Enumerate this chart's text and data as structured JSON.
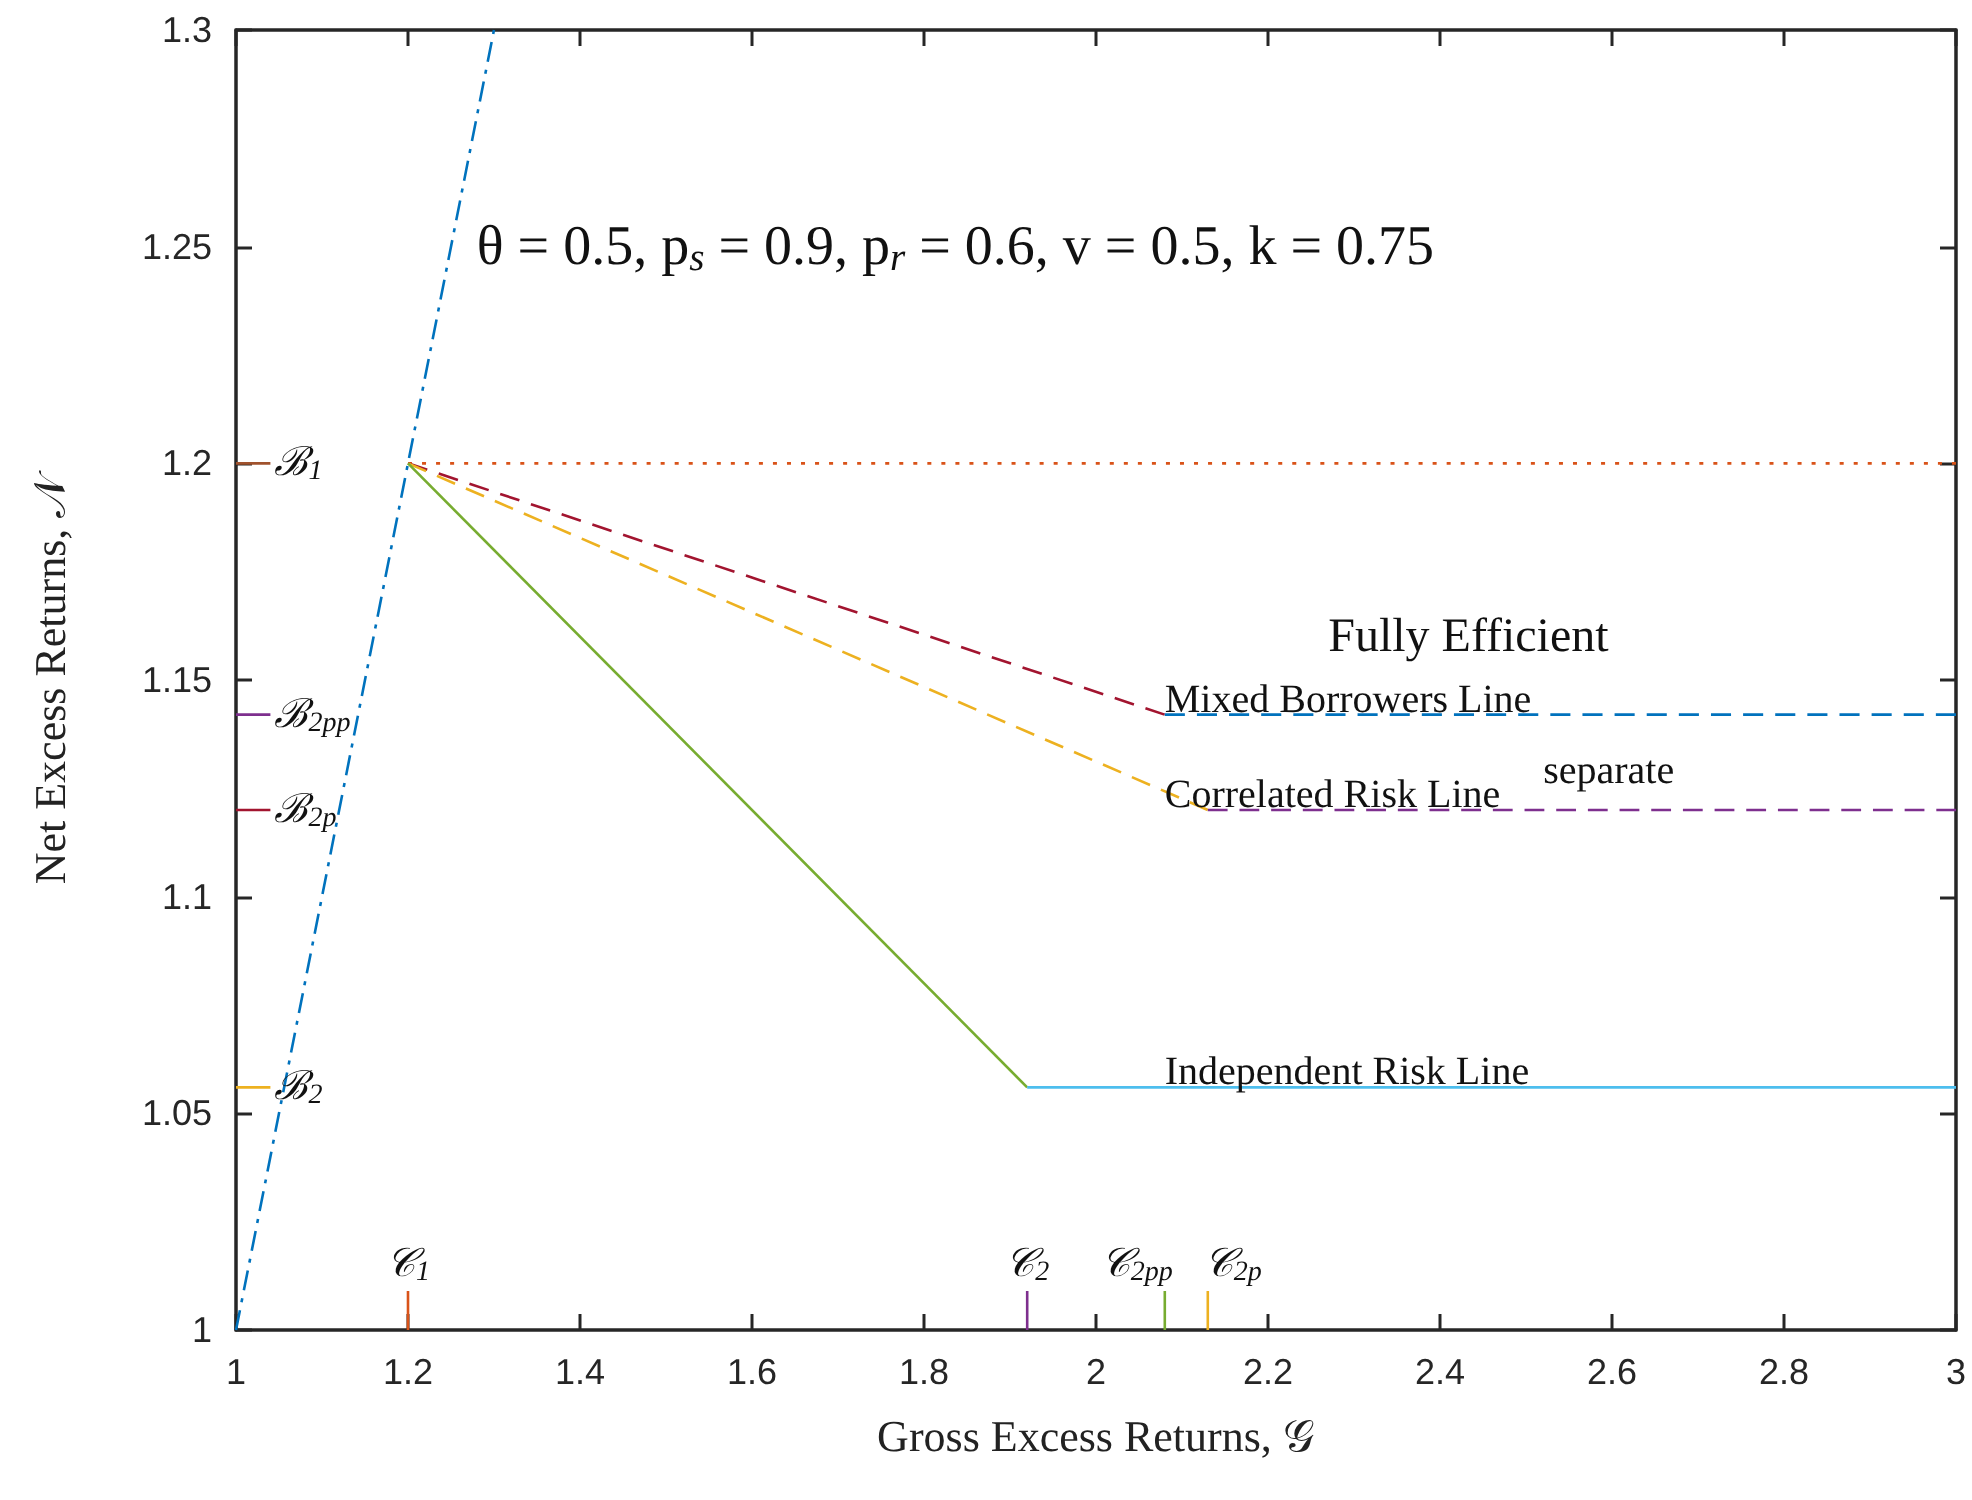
{
  "chart_data": {
    "type": "line",
    "xlabel": "Gross Excess Returns, 𝒢",
    "ylabel": "Net Excess Returns, 𝒩",
    "xlim": [
      1,
      3
    ],
    "xticks": [
      1,
      1.2,
      1.4,
      1.6,
      1.8,
      2,
      2.2,
      2.4,
      2.6,
      2.8,
      3
    ],
    "ylim": [
      1,
      1.3
    ],
    "yticks": [
      1,
      1.05,
      1.1,
      1.15,
      1.2,
      1.25,
      1.3
    ],
    "grid": false,
    "legend": false,
    "series": [
      {
        "color": "#0072bd",
        "line_style": "dashdot",
        "x": [
          1,
          1.3
        ],
        "values": [
          1,
          1.3
        ]
      },
      {
        "color": "#d95319",
        "line_style": "dotted",
        "x": [
          1.2,
          3
        ],
        "values": [
          1.2,
          1.2
        ]
      },
      {
        "color": "#a2142f",
        "line_style": "dashed",
        "x": [
          1.2,
          2.08
        ],
        "values": [
          1.2,
          1.142
        ]
      },
      {
        "color": "#0072bd",
        "line_style": "dashed",
        "x": [
          2.08,
          3
        ],
        "values": [
          1.142,
          1.142
        ]
      },
      {
        "color": "#edb120",
        "line_style": "dashed",
        "x": [
          1.2,
          2.13
        ],
        "values": [
          1.2,
          1.12
        ]
      },
      {
        "color": "#7e2f8e",
        "line_style": "dashed",
        "x": [
          2.13,
          3
        ],
        "values": [
          1.12,
          1.12
        ]
      },
      {
        "color": "#77ac30",
        "line_style": "solid",
        "x": [
          1.2,
          1.92
        ],
        "values": [
          1.2,
          1.056
        ]
      },
      {
        "color": "#4dbeee",
        "line_style": "solid",
        "x": [
          1.92,
          3
        ],
        "values": [
          1.056,
          1.056
        ]
      },
      {
        "name": "ℬ$_{1}$",
        "color": "#a0522d",
        "line_style": "solid",
        "x": [
          1,
          1.04
        ],
        "values": [
          1.2,
          1.2
        ]
      },
      {
        "name": "ℬ$_{2pp}$",
        "color": "#7e2f8e",
        "line_style": "solid",
        "x": [
          1,
          1.04
        ],
        "values": [
          1.142,
          1.142
        ]
      },
      {
        "name": "ℬ$_{2p}$",
        "color": "#a2142f",
        "line_style": "solid",
        "x": [
          1,
          1.04
        ],
        "values": [
          1.12,
          1.12
        ]
      },
      {
        "name": "ℬ$_{2}$",
        "color": "#edb120",
        "line_style": "solid",
        "x": [
          1,
          1.04
        ],
        "values": [
          1.056,
          1.056
        ]
      },
      {
        "name": "𝒞$_{1}$",
        "color": "#d95319",
        "line_style": "solid",
        "x": [
          1.2,
          1.2
        ],
        "values": [
          1,
          1.009
        ]
      },
      {
        "name": "𝒞$_{2}$",
        "color": "#7e2f8e",
        "line_style": "solid",
        "x": [
          1.92,
          1.92
        ],
        "values": [
          1,
          1.009
        ]
      },
      {
        "name": "𝒞$_{2pp}$",
        "color": "#77ac30",
        "line_style": "solid",
        "x": [
          2.08,
          2.08
        ],
        "values": [
          1,
          1.009
        ]
      },
      {
        "name": "𝒞$_{2p}$",
        "color": "#edb120",
        "line_style": "solid",
        "x": [
          2.13,
          2.13
        ],
        "values": [
          1,
          1.009
        ]
      }
    ],
    "annotations": [
      "θ = 0.5, p$_{s}$ = 0.9, p$_{r}$ = 0.6, v = 0.5, k = 0.75",
      "Fully Efficient",
      "separate",
      "Mixed Borrowers Line",
      "Correlated Risk Line",
      "Independent Risk Line"
    ]
  }
}
